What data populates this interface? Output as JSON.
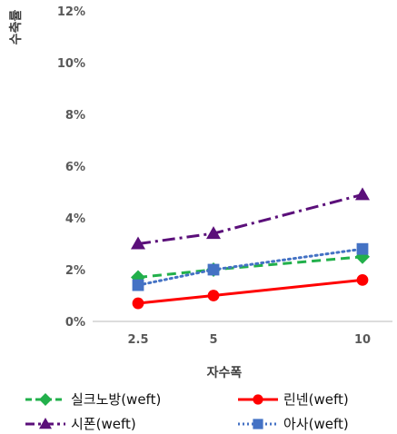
{
  "chart_data": {
    "type": "line",
    "x": [
      "2.5",
      "5",
      "10"
    ],
    "xlabel": "자수폭",
    "ylabel": "수축률",
    "ylim": [
      0,
      12
    ],
    "yticks": [
      "0%",
      "2%",
      "4%",
      "6%",
      "8%",
      "10%",
      "12%"
    ],
    "grid": false,
    "legend_position": "bottom",
    "series": [
      {
        "name": "실크노방(weft)",
        "values": [
          1.7,
          2.0,
          2.5
        ],
        "color": "#22b04b",
        "marker": "diamond",
        "dash": "dashed"
      },
      {
        "name": "린넨(weft)",
        "values": [
          0.7,
          1.0,
          1.6
        ],
        "color": "#ff0000",
        "marker": "circle",
        "dash": "solid"
      },
      {
        "name": "시폰(weft)",
        "values": [
          3.0,
          3.4,
          4.9
        ],
        "color": "#5b0f7a",
        "marker": "triangle",
        "dash": "dashdot"
      },
      {
        "name": "아사(weft)",
        "values": [
          1.4,
          2.0,
          2.8
        ],
        "color": "#4472c4",
        "marker": "square",
        "dash": "dotted"
      }
    ]
  }
}
